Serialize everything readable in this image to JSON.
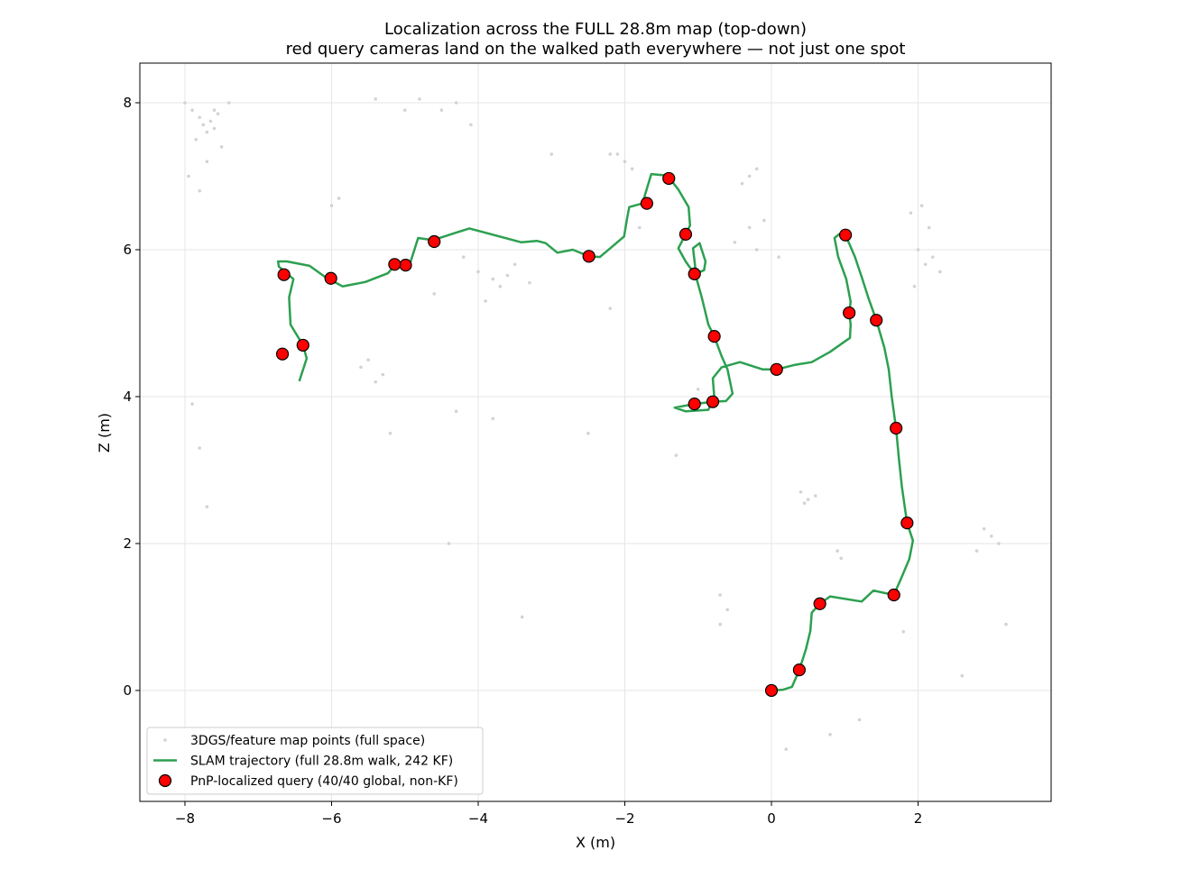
{
  "chart_data": {
    "type": "scatter",
    "title": "Localization across the FULL 28.8m map (top-down)",
    "subtitle": "red query cameras land on the walked path everywhere — not just one spot",
    "x_label": "X (m)",
    "y_label": "Z (m)",
    "xlim": [
      -8.615,
      3.815
    ],
    "ylim": [
      -1.51,
      8.54
    ],
    "xticks": [
      {
        "value": -8,
        "label": "−8"
      },
      {
        "value": -6,
        "label": "−6"
      },
      {
        "value": -4,
        "label": "−4"
      },
      {
        "value": -2,
        "label": "−2"
      },
      0,
      2
    ],
    "yticks": [
      0,
      2,
      4,
      6,
      8
    ],
    "grid": true,
    "legend": "lower left",
    "series": [
      {
        "name": "3DGS/feature map points (full space)",
        "type": "scatter",
        "color": "#d3d3d3",
        "x": [
          -8.0,
          -7.9,
          -7.8,
          -7.75,
          -7.7,
          -7.65,
          -7.6,
          -7.85,
          -7.7,
          -7.5,
          -7.4,
          -7.95,
          -7.55,
          -7.8,
          -7.6,
          -5.4,
          -4.8,
          -4.5,
          -4.3,
          -4.1,
          -5.0,
          -6.0,
          -5.9,
          -4.6,
          -4.0,
          -3.8,
          -3.6,
          -3.5,
          -3.3,
          -3.7,
          -3.9,
          -4.2,
          -2.0,
          -2.1,
          -1.9,
          -2.2,
          -1.8,
          -0.3,
          -0.4,
          -0.2,
          -0.1,
          -0.3,
          -0.5,
          -0.2,
          0.1,
          2.1,
          2.2,
          2.0,
          2.3,
          2.15,
          1.9,
          1.95,
          2.05,
          0.5,
          0.4,
          0.6,
          0.45,
          0.9,
          0.95,
          -0.7,
          -0.6,
          -0.7,
          -5.6,
          -5.5,
          -5.3,
          -5.4,
          2.9,
          3.0,
          3.1,
          2.8,
          3.2,
          1.8,
          -7.9,
          -7.8,
          -7.7,
          -4.3,
          -3.8,
          -2.5,
          -1.3,
          0.8,
          1.2,
          2.6,
          -1.0,
          -6.7,
          -3.0,
          -2.2,
          -5.2,
          -4.4,
          -3.4,
          0.2
        ],
        "y": [
          8.0,
          7.9,
          7.8,
          7.7,
          7.6,
          7.75,
          7.65,
          7.5,
          7.2,
          7.4,
          8.0,
          7.0,
          7.85,
          6.8,
          7.9,
          8.05,
          8.05,
          7.9,
          8.0,
          7.7,
          7.9,
          6.6,
          6.7,
          5.4,
          5.7,
          5.6,
          5.65,
          5.8,
          5.55,
          5.5,
          5.3,
          5.9,
          7.2,
          7.3,
          7.1,
          7.3,
          6.3,
          7.0,
          6.9,
          7.1,
          6.4,
          6.3,
          6.1,
          6.0,
          5.9,
          5.8,
          5.9,
          6.0,
          5.7,
          6.3,
          6.5,
          5.5,
          6.6,
          2.6,
          2.7,
          2.65,
          2.55,
          1.9,
          1.8,
          1.3,
          1.1,
          0.9,
          4.4,
          4.5,
          4.3,
          4.2,
          2.2,
          2.1,
          2.0,
          1.9,
          0.9,
          0.8,
          3.9,
          3.3,
          2.5,
          3.8,
          3.7,
          3.5,
          3.2,
          -0.6,
          -0.4,
          0.2,
          4.1,
          5.7,
          7.3,
          5.2,
          3.5,
          2.0,
          1.0,
          -0.8
        ]
      },
      {
        "name": "SLAM trajectory (full 28.8m walk, 242 KF)",
        "type": "line",
        "color": "#2ca050",
        "x": [
          -6.44,
          -6.34,
          -6.39,
          -6.56,
          -6.58,
          -6.52,
          -6.72,
          -6.73,
          -6.61,
          -6.3,
          -6.09,
          -5.85,
          -5.54,
          -5.23,
          -5.11,
          -4.92,
          -4.82,
          -4.62,
          -4.12,
          -3.41,
          -3.2,
          -3.08,
          -2.92,
          -2.71,
          -2.49,
          -2.34,
          -2.15,
          -2.01,
          -1.97,
          -1.94,
          -1.76,
          -1.64,
          -1.42,
          -1.27,
          -1.13,
          -1.11,
          -1.17,
          -1.27,
          -1.17,
          -1.05,
          -0.92,
          -0.9,
          -0.98,
          -1.07,
          -1.02,
          -0.95,
          -0.86,
          -0.78,
          -0.68,
          -0.6,
          -0.53,
          -0.62,
          -0.8,
          -1.05,
          -1.32,
          -1.17,
          -0.86,
          -0.78,
          -0.8,
          -0.68,
          -0.43,
          -0.12,
          0.07,
          0.31,
          0.55,
          0.8,
          1.07,
          1.08,
          1.06,
          1.08,
          1.02,
          0.91,
          0.86,
          0.92,
          1.01,
          1.14,
          1.24,
          1.32,
          1.43,
          1.54,
          1.6,
          1.64,
          1.7,
          1.74,
          1.78,
          1.85,
          1.93,
          1.88,
          1.78,
          1.67,
          1.39,
          1.23,
          0.8,
          0.66,
          0.55,
          0.53,
          0.47,
          0.38,
          0.28,
          0.16,
          0
        ],
        "y": [
          4.21,
          4.52,
          4.7,
          4.98,
          5.35,
          5.6,
          5.77,
          5.84,
          5.84,
          5.78,
          5.63,
          5.5,
          5.56,
          5.68,
          5.82,
          5.84,
          6.16,
          6.13,
          6.29,
          6.1,
          6.12,
          6.09,
          5.96,
          6.0,
          5.91,
          5.9,
          6.06,
          6.18,
          6.42,
          6.58,
          6.63,
          7.03,
          7.01,
          6.82,
          6.58,
          6.33,
          6.21,
          6.02,
          5.84,
          5.67,
          5.72,
          5.84,
          6.09,
          6.02,
          5.6,
          5.35,
          4.98,
          4.82,
          4.55,
          4.37,
          4.04,
          3.94,
          3.93,
          3.9,
          3.85,
          3.8,
          3.82,
          4.0,
          4.25,
          4.4,
          4.47,
          4.37,
          4.37,
          4.43,
          4.47,
          4.61,
          4.8,
          4.98,
          5.14,
          5.29,
          5.6,
          5.9,
          6.16,
          6.21,
          6.2,
          5.9,
          5.6,
          5.35,
          5.04,
          4.67,
          4.37,
          4.0,
          3.57,
          3.14,
          2.77,
          2.28,
          2.04,
          1.79,
          1.55,
          1.3,
          1.36,
          1.21,
          1.28,
          1.18,
          1.06,
          0.81,
          0.56,
          0.28,
          0.05,
          0.01,
          0
        ]
      },
      {
        "name": "PnP-localized query (40/40 global, non-KF)",
        "type": "scatter",
        "color": "#ff0000",
        "x": [
          0,
          0.38,
          0.66,
          1.67,
          1.85,
          1.7,
          1.43,
          1.06,
          1.01,
          0.07,
          -0.78,
          -0.8,
          -1.05,
          -1.05,
          -1.17,
          -1.4,
          -1.7,
          -2.49,
          -4.6,
          -4.99,
          -5.14,
          -6.01,
          -6.65,
          -6.39,
          -6.67
        ],
        "y": [
          0,
          0.28,
          1.18,
          1.3,
          2.28,
          3.57,
          5.04,
          5.14,
          6.2,
          4.37,
          4.82,
          3.93,
          3.9,
          5.67,
          6.21,
          6.97,
          6.63,
          5.91,
          6.11,
          5.79,
          5.8,
          5.61,
          5.66,
          4.7,
          4.58
        ]
      }
    ]
  }
}
